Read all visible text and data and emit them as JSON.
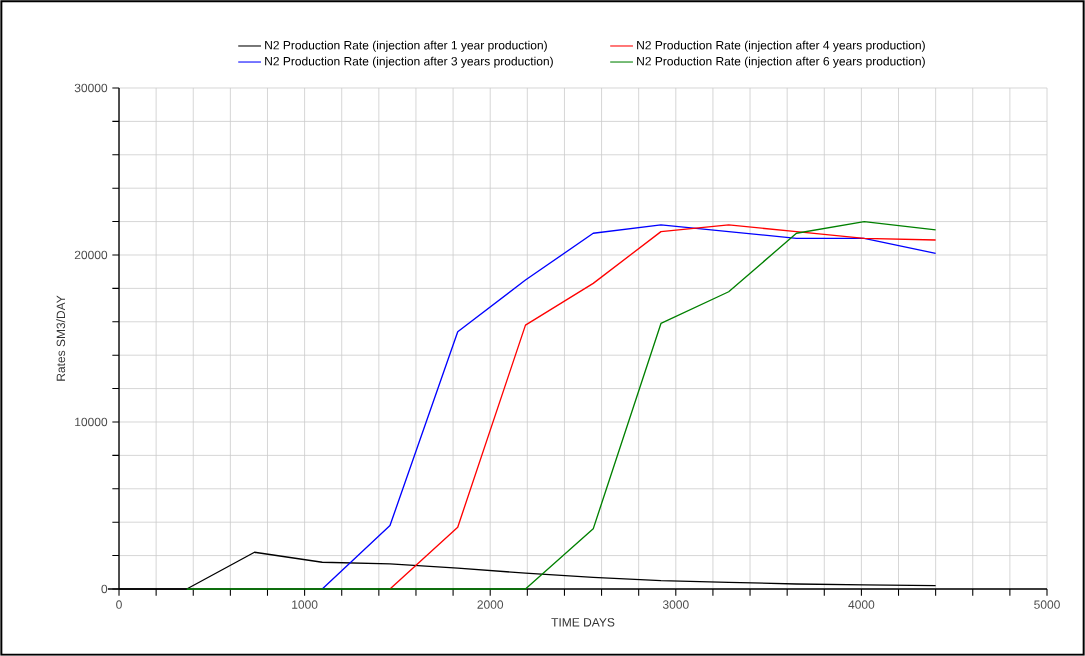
{
  "chart_data": {
    "type": "line",
    "xlabel": "TIME  DAYS",
    "ylabel": "Rates  SM3/DAY",
    "xlim": [
      0,
      5000
    ],
    "ylim": [
      0,
      30000
    ],
    "xticks": [
      0,
      {
        "value": 200,
        "label": null
      },
      {
        "value": 400,
        "label": null
      },
      {
        "value": 600,
        "label": null
      },
      {
        "value": 800,
        "label": null
      },
      1000,
      {
        "value": 1200,
        "label": null
      },
      {
        "value": 1400,
        "label": null
      },
      {
        "value": 1600,
        "label": null
      },
      {
        "value": 1800,
        "label": null
      },
      2000,
      {
        "value": 2200,
        "label": null
      },
      {
        "value": 2400,
        "label": null
      },
      {
        "value": 2600,
        "label": null
      },
      {
        "value": 2800,
        "label": null
      },
      3000,
      {
        "value": 3200,
        "label": null
      },
      {
        "value": 3400,
        "label": null
      },
      {
        "value": 3600,
        "label": null
      },
      {
        "value": 3800,
        "label": null
      },
      4000,
      {
        "value": 4200,
        "label": null
      },
      {
        "value": 4400,
        "label": null
      },
      {
        "value": 4600,
        "label": null
      },
      {
        "value": 4800,
        "label": null
      },
      5000
    ],
    "yticks": [
      0,
      {
        "value": 2000,
        "label": null
      },
      {
        "value": 4000,
        "label": null
      },
      {
        "value": 6000,
        "label": null
      },
      {
        "value": 8000,
        "label": null
      },
      10000,
      {
        "value": 12000,
        "label": null
      },
      {
        "value": 14000,
        "label": null
      },
      {
        "value": 16000,
        "label": null
      },
      {
        "value": 18000,
        "label": null
      },
      20000,
      {
        "value": 22000,
        "label": null
      },
      {
        "value": 24000,
        "label": null
      },
      {
        "value": 26000,
        "label": null
      },
      {
        "value": 28000,
        "label": null
      },
      30000
    ],
    "grid": true,
    "legend": "top",
    "line_style": "solid",
    "marker": "none",
    "series": [
      {
        "name": "N2 Production Rate (injection after 1 year production)",
        "color": "#000000",
        "x": [
          0,
          365,
          730,
          1095,
          1460,
          1825,
          2190,
          2555,
          2920,
          3285,
          3650,
          4015,
          4400
        ],
        "values": [
          0,
          0,
          2200,
          1600,
          1500,
          1250,
          950,
          700,
          500,
          400,
          300,
          250,
          200
        ]
      },
      {
        "name": "N2 Production Rate (injection after 3 years production)",
        "color": "#0000ff",
        "x": [
          1095,
          1460,
          1825,
          2190,
          2555,
          2920,
          3285,
          3650,
          4015,
          4400
        ],
        "values": [
          0,
          3800,
          15400,
          18500,
          21300,
          21800,
          21400,
          21000,
          21000,
          20100
        ]
      },
      {
        "name": "N2 Production Rate (injection after 4 years production)",
        "color": "#ff0000",
        "x": [
          1460,
          1825,
          2190,
          2555,
          2920,
          3285,
          3650,
          4015,
          4400
        ],
        "values": [
          0,
          3700,
          15800,
          18300,
          21400,
          21800,
          21400,
          21000,
          20900
        ]
      },
      {
        "name": "N2 Production Rate (injection after 6 years production)",
        "color": "#008000",
        "x": [
          365,
          2190,
          2555,
          2920,
          3285,
          3650,
          4015,
          4400
        ],
        "values": [
          0,
          0,
          3600,
          15900,
          17800,
          21300,
          22000,
          21500
        ]
      }
    ]
  }
}
